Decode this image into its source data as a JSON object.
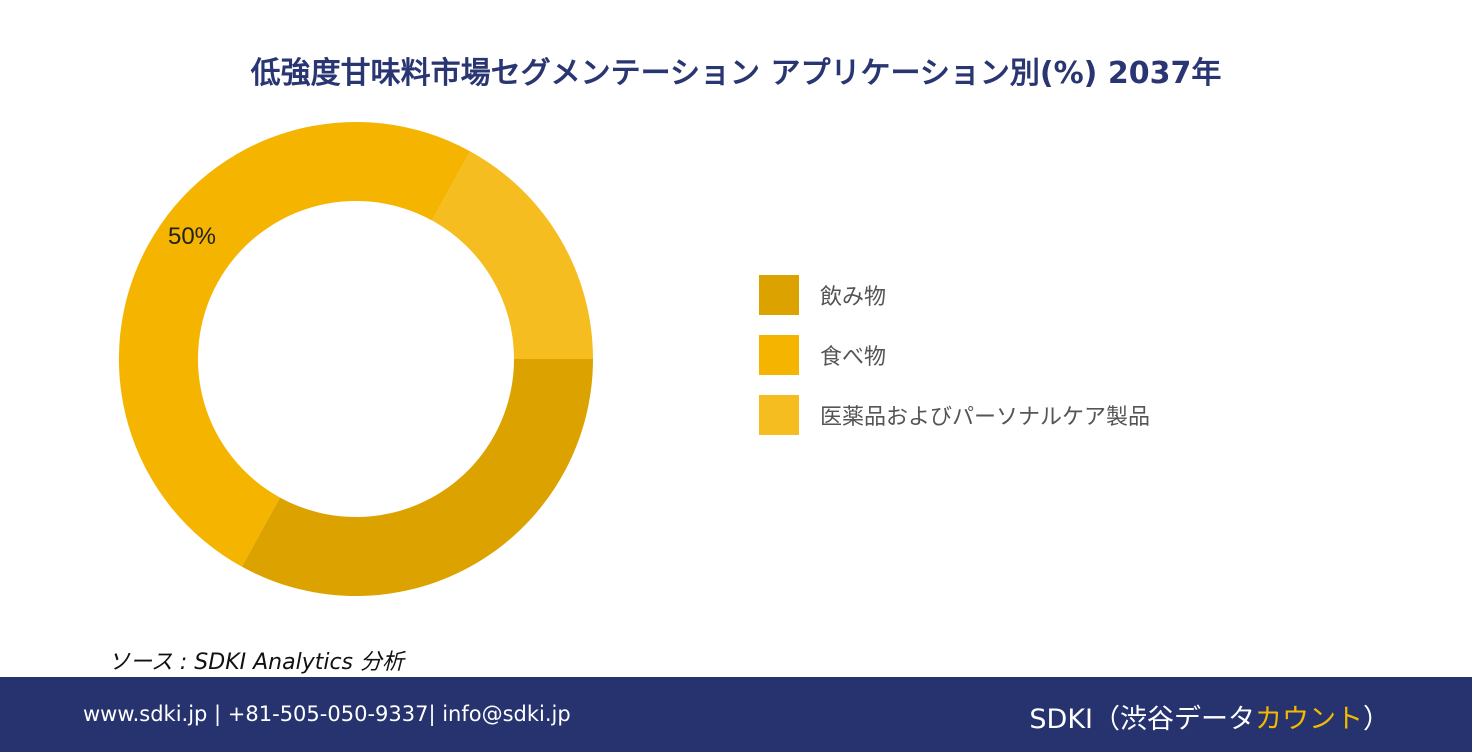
{
  "title": "低強度甘味料市場セグメンテーション アプリケーション別(%) 2037年",
  "chart_data": {
    "type": "pie",
    "donut": true,
    "categories": [
      "飲み物",
      "食べ物",
      "医薬品およびパーソナルケア製品"
    ],
    "values": [
      33,
      50,
      17
    ],
    "data_labels": [
      "",
      "50%",
      ""
    ],
    "colors": [
      "#dca300",
      "#f4b400",
      "#f5bd20"
    ],
    "legend_position": "right"
  },
  "source": "ソース : SDKI Analytics 分析",
  "footer": {
    "contact": "www.sdki.jp | +81-505-050-9337| info@sdki.jp",
    "brand_main": "SDKI（渋谷データ",
    "brand_accent": "カウント",
    "brand_close": "）"
  }
}
